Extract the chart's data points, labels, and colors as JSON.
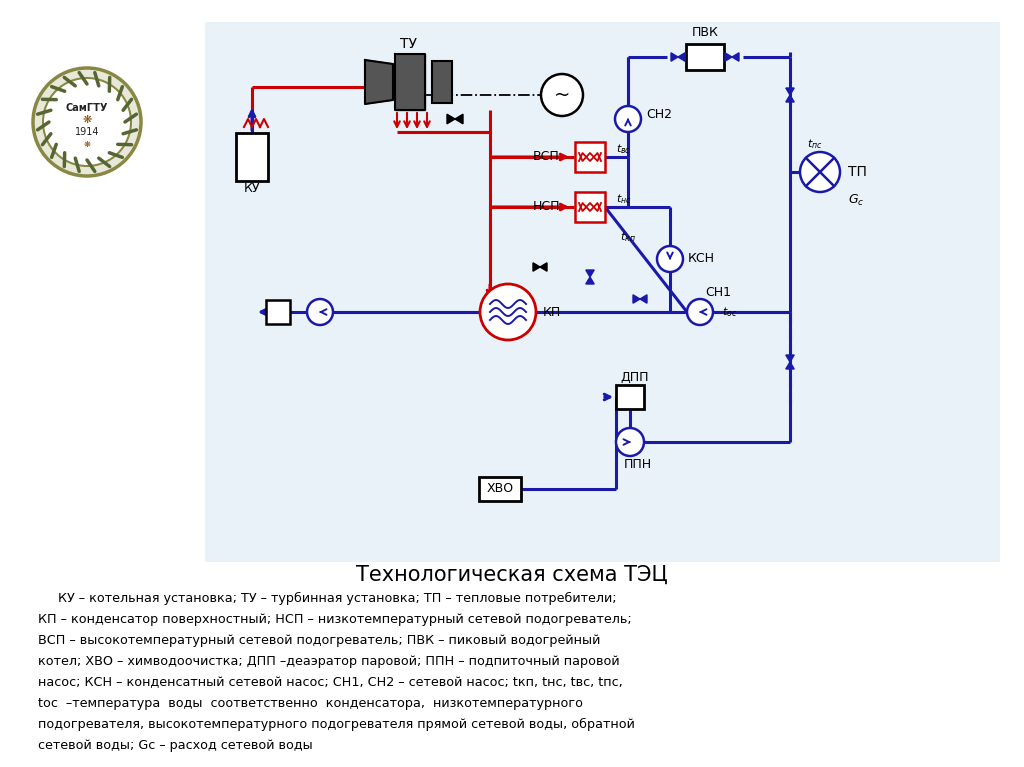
{
  "bg_color": "#ffffff",
  "diagram_bg": "#e8f0f8",
  "red": "#cc0000",
  "blue": "#1a1aaa",
  "black": "#000000",
  "title": "Технологическая схема ТЭЦ",
  "desc1": "     КУ – котельная установка; ТУ – турбинная установка; ТП – тепловые потребители;",
  "desc2": "КП – конденсатор поверхностный; НСП – низкотемпературный сетевой подогреватель;",
  "desc3": "ВСП – высокотемпературный сетевой подогреватель; ПВК – пиковый водогрейный",
  "desc4": "котел; ХВО – химводоочистка; ДПП –деаэратор паровой; ППН – подпиточный паровой",
  "desc5": "насос; КСН – конденсатный сетевой насос; СН1, СН2 – сетевой насос; tкп, tнс, tвс, tпс,",
  "desc6": "tос  –температура  воды  соответственно  конденсатора,  низкотемпературного",
  "desc7": "подогревателя, высокотемпературного подогревателя прямой сетевой воды, обратной",
  "desc8": "сетевой воды; Gc – расход сетевой воды"
}
